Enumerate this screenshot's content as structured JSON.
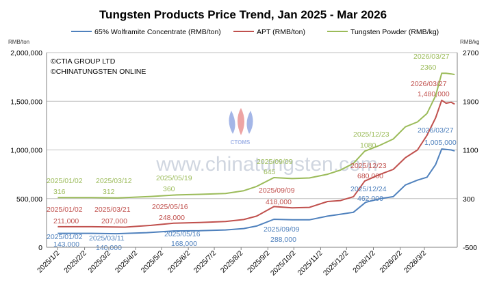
{
  "chart_data": {
    "type": "line",
    "title": "Tungsten Products Price Trend, Jan 2025 - Mar 2026",
    "left_unit": "RMB/ton",
    "right_unit": "RMB/kg",
    "left_ylim": [
      0,
      2000000
    ],
    "left_ticks": [
      "0",
      "500,000",
      "1,000,000",
      "1,500,000",
      "2,000,000"
    ],
    "right_ylim": [
      -500,
      2700
    ],
    "right_ticks": [
      "-500",
      "300",
      "1100",
      "1900",
      "2700"
    ],
    "x_ticks": [
      "2025/1/2",
      "2025/2/2",
      "2025/3/2",
      "2025/4/2",
      "2025/5/2",
      "2025/6/2",
      "2025/7/2",
      "2025/8/2",
      "2025/9/2",
      "2025/10/2",
      "2025/11/2",
      "2025/12/2",
      "2026/1/2",
      "2026/2/2",
      "2026/3/2"
    ],
    "copyright": [
      "©CTIA GROUP LTD",
      "©CHINATUNGSTEN ONLINE"
    ],
    "watermark": "www.chinatungsten.com",
    "logo_text": "CTOMS",
    "series": [
      {
        "name": "65% Wolframite Concentrate (RMB/ton)",
        "axis": "left",
        "color": "#4f81bd",
        "x": [
          "2025-01-02",
          "2025-02-10",
          "2025-03-11",
          "2025-04-15",
          "2025-05-16",
          "2025-06-15",
          "2025-07-15",
          "2025-08-05",
          "2025-08-20",
          "2025-09-09",
          "2025-09-30",
          "2025-10-20",
          "2025-11-10",
          "2025-11-25",
          "2025-12-10",
          "2025-12-24",
          "2026-01-10",
          "2026-01-25",
          "2026-02-08",
          "2026-02-22",
          "2026-03-05",
          "2026-03-15",
          "2026-03-22",
          "2026-03-27",
          "2026-04-02",
          "2026-04-06"
        ],
        "y": [
          143000,
          143000,
          140000,
          150000,
          168000,
          170000,
          178000,
          192000,
          218000,
          288000,
          282000,
          282000,
          320000,
          340000,
          360000,
          462000,
          500000,
          520000,
          640000,
          690000,
          720000,
          850000,
          1010000,
          1005000,
          1000000,
          990000
        ]
      },
      {
        "name": "APT (RMB/ton)",
        "axis": "left",
        "color": "#c0504d",
        "x": [
          "2025-01-02",
          "2025-02-10",
          "2025-03-21",
          "2025-04-20",
          "2025-05-16",
          "2025-06-15",
          "2025-07-15",
          "2025-08-05",
          "2025-08-20",
          "2025-09-09",
          "2025-09-30",
          "2025-10-20",
          "2025-11-10",
          "2025-11-25",
          "2025-12-10",
          "2025-12-23",
          "2026-01-10",
          "2026-01-25",
          "2026-02-08",
          "2026-02-22",
          "2026-03-05",
          "2026-03-15",
          "2026-03-22",
          "2026-03-27",
          "2026-04-02",
          "2026-04-06"
        ],
        "y": [
          211000,
          211000,
          207000,
          225000,
          248000,
          255000,
          265000,
          285000,
          320000,
          418000,
          405000,
          410000,
          470000,
          480000,
          520000,
          680000,
          750000,
          800000,
          920000,
          1000000,
          1150000,
          1330000,
          1510000,
          1480000,
          1490000,
          1470000
        ]
      },
      {
        "name": "Tungsten Powder (RMB/kg)",
        "axis": "right",
        "color": "#9bbb59",
        "x": [
          "2025-01-02",
          "2025-02-10",
          "2025-03-12",
          "2025-04-20",
          "2025-05-19",
          "2025-06-15",
          "2025-07-15",
          "2025-08-05",
          "2025-08-20",
          "2025-09-09",
          "2025-09-30",
          "2025-10-20",
          "2025-11-10",
          "2025-11-25",
          "2025-12-10",
          "2025-12-23",
          "2026-01-10",
          "2026-01-25",
          "2026-02-08",
          "2026-02-22",
          "2026-03-05",
          "2026-03-15",
          "2026-03-22",
          "2026-03-27",
          "2026-04-02",
          "2026-04-06"
        ],
        "y": [
          316,
          316,
          312,
          335,
          360,
          370,
          385,
          430,
          500,
          645,
          630,
          640,
          700,
          770,
          880,
          1080,
          1180,
          1280,
          1480,
          1560,
          1700,
          1990,
          2360,
          2360,
          2350,
          2340
        ]
      }
    ],
    "annotations": [
      {
        "series": 0,
        "date": "2025/01/02",
        "value": "143,000"
      },
      {
        "series": 0,
        "date": "2025/03/11",
        "value": "140,000"
      },
      {
        "series": 0,
        "date": "2025/05/16",
        "value": "168,000"
      },
      {
        "series": 0,
        "date": "2025/09/09",
        "value": "288,000"
      },
      {
        "series": 0,
        "date": "2025/12/24",
        "value": "462,000"
      },
      {
        "series": 0,
        "date": "2026/03/27",
        "value": "1,005,000"
      },
      {
        "series": 1,
        "date": "2025/01/02",
        "value": "211,000"
      },
      {
        "series": 1,
        "date": "2025/03/21",
        "value": "207,000"
      },
      {
        "series": 1,
        "date": "2025/05/16",
        "value": "248,000"
      },
      {
        "series": 1,
        "date": "2025/09/09",
        "value": "418,000"
      },
      {
        "series": 1,
        "date": "2025/12/23",
        "value": "680,000"
      },
      {
        "series": 1,
        "date": "2026/03/27",
        "value": "1,480,000"
      },
      {
        "series": 2,
        "date": "2025/01/02",
        "value": "316"
      },
      {
        "series": 2,
        "date": "2025/03/12",
        "value": "312"
      },
      {
        "series": 2,
        "date": "2025/05/19",
        "value": "360"
      },
      {
        "series": 2,
        "date": "2025/09/09",
        "value": "645"
      },
      {
        "series": 2,
        "date": "2025/12/23",
        "value": "1080"
      },
      {
        "series": 2,
        "date": "2026/03/27",
        "value": "2360"
      }
    ]
  }
}
